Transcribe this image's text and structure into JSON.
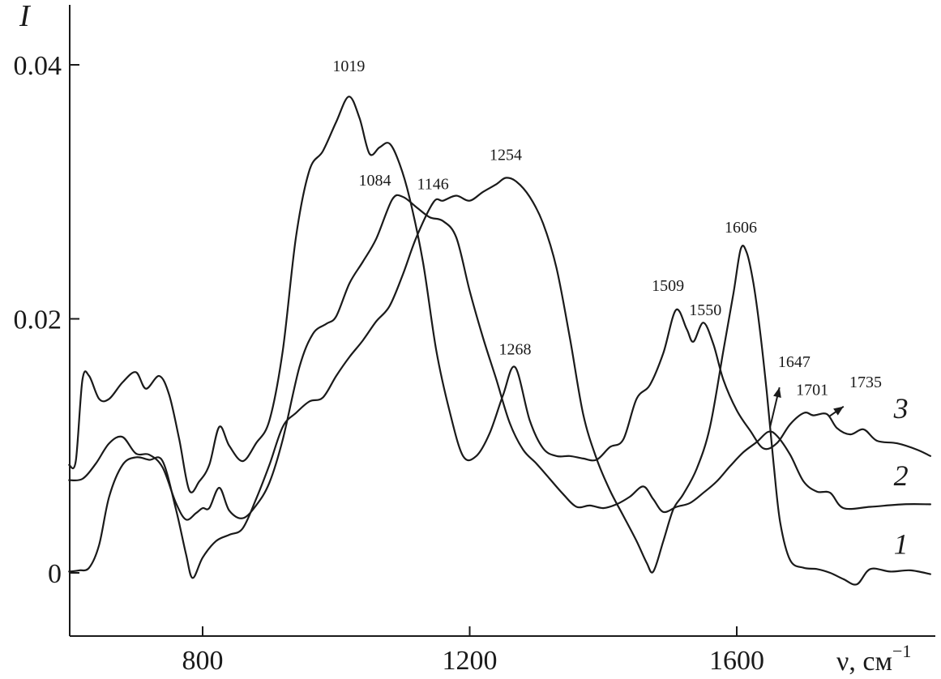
{
  "chart_data": {
    "type": "line",
    "xlabel": "ν, см",
    "xlabel_sup": "−1",
    "ylabel": "I",
    "xlim": [
      600,
      1900
    ],
    "ylim": [
      -0.0012,
      0.046
    ],
    "x_ticks": [
      800,
      1200,
      1600
    ],
    "x_tick_labels": [
      "800",
      "1200",
      "1600"
    ],
    "y_ticks": [
      0,
      0.02,
      0.04
    ],
    "y_tick_labels": [
      "0",
      "0.02",
      "0.04"
    ],
    "series": [
      {
        "name": "1",
        "points": [
          [
            600,
            0.0001
          ],
          [
            615,
            0.0002
          ],
          [
            630,
            0.0004
          ],
          [
            645,
            0.0022
          ],
          [
            660,
            0.006
          ],
          [
            680,
            0.0085
          ],
          [
            700,
            0.0091
          ],
          [
            720,
            0.0089
          ],
          [
            740,
            0.0088
          ],
          [
            760,
            0.005
          ],
          [
            775,
            0.0015
          ],
          [
            785,
            -0.0004
          ],
          [
            800,
            0.0012
          ],
          [
            820,
            0.0025
          ],
          [
            840,
            0.003
          ],
          [
            860,
            0.0035
          ],
          [
            880,
            0.0058
          ],
          [
            900,
            0.0085
          ],
          [
            920,
            0.0115
          ],
          [
            940,
            0.0126
          ],
          [
            960,
            0.0135
          ],
          [
            980,
            0.0138
          ],
          [
            1000,
            0.0155
          ],
          [
            1020,
            0.017
          ],
          [
            1040,
            0.0183
          ],
          [
            1060,
            0.0198
          ],
          [
            1080,
            0.021
          ],
          [
            1100,
            0.0235
          ],
          [
            1120,
            0.0264
          ],
          [
            1146,
            0.0292
          ],
          [
            1160,
            0.0293
          ],
          [
            1180,
            0.0297
          ],
          [
            1200,
            0.0293
          ],
          [
            1220,
            0.03
          ],
          [
            1240,
            0.0306
          ],
          [
            1254,
            0.0311
          ],
          [
            1270,
            0.0308
          ],
          [
            1290,
            0.0296
          ],
          [
            1310,
            0.0275
          ],
          [
            1330,
            0.024
          ],
          [
            1350,
            0.0185
          ],
          [
            1370,
            0.0125
          ],
          [
            1390,
            0.009
          ],
          [
            1410,
            0.0065
          ],
          [
            1430,
            0.0045
          ],
          [
            1450,
            0.0025
          ],
          [
            1465,
            0.0008
          ],
          [
            1475,
            0.0001
          ],
          [
            1490,
            0.0025
          ],
          [
            1505,
            0.005
          ],
          [
            1520,
            0.0062
          ],
          [
            1540,
            0.0082
          ],
          [
            1560,
            0.0115
          ],
          [
            1580,
            0.0175
          ],
          [
            1595,
            0.022
          ],
          [
            1606,
            0.0255
          ],
          [
            1615,
            0.0252
          ],
          [
            1625,
            0.0228
          ],
          [
            1635,
            0.019
          ],
          [
            1645,
            0.0142
          ],
          [
            1655,
            0.0087
          ],
          [
            1665,
            0.004
          ],
          [
            1680,
            0.001
          ],
          [
            1700,
            0.0004
          ],
          [
            1720,
            0.0003
          ],
          [
            1740,
            0.0
          ],
          [
            1760,
            -0.0005
          ],
          [
            1780,
            -0.0009
          ],
          [
            1800,
            0.0003
          ],
          [
            1830,
            0.0001
          ],
          [
            1860,
            0.0002
          ],
          [
            1890,
            -0.0001
          ]
        ]
      },
      {
        "name": "2",
        "points": [
          [
            600,
            0.0073
          ],
          [
            620,
            0.0074
          ],
          [
            640,
            0.0086
          ],
          [
            660,
            0.0102
          ],
          [
            680,
            0.0107
          ],
          [
            700,
            0.0094
          ],
          [
            720,
            0.0093
          ],
          [
            740,
            0.0083
          ],
          [
            760,
            0.0055
          ],
          [
            775,
            0.0042
          ],
          [
            790,
            0.0047
          ],
          [
            800,
            0.0051
          ],
          [
            810,
            0.0051
          ],
          [
            825,
            0.0067
          ],
          [
            840,
            0.0049
          ],
          [
            860,
            0.0043
          ],
          [
            880,
            0.0053
          ],
          [
            900,
            0.0071
          ],
          [
            920,
            0.0105
          ],
          [
            945,
            0.0162
          ],
          [
            965,
            0.0188
          ],
          [
            985,
            0.0196
          ],
          [
            1000,
            0.0202
          ],
          [
            1020,
            0.0228
          ],
          [
            1040,
            0.0245
          ],
          [
            1060,
            0.0263
          ],
          [
            1084,
            0.0294
          ],
          [
            1100,
            0.0296
          ],
          [
            1120,
            0.0288
          ],
          [
            1140,
            0.028
          ],
          [
            1160,
            0.0277
          ],
          [
            1180,
            0.0264
          ],
          [
            1200,
            0.0222
          ],
          [
            1220,
            0.0185
          ],
          [
            1240,
            0.0152
          ],
          [
            1260,
            0.0118
          ],
          [
            1280,
            0.0097
          ],
          [
            1300,
            0.0086
          ],
          [
            1320,
            0.0074
          ],
          [
            1340,
            0.0062
          ],
          [
            1360,
            0.0052
          ],
          [
            1380,
            0.0053
          ],
          [
            1400,
            0.0051
          ],
          [
            1420,
            0.0054
          ],
          [
            1440,
            0.006
          ],
          [
            1460,
            0.0068
          ],
          [
            1475,
            0.0058
          ],
          [
            1490,
            0.0048
          ],
          [
            1510,
            0.0052
          ],
          [
            1530,
            0.0055
          ],
          [
            1550,
            0.0063
          ],
          [
            1570,
            0.0072
          ],
          [
            1590,
            0.0084
          ],
          [
            1610,
            0.0095
          ],
          [
            1630,
            0.0103
          ],
          [
            1647,
            0.0111
          ],
          [
            1660,
            0.0108
          ],
          [
            1680,
            0.0093
          ],
          [
            1700,
            0.0072
          ],
          [
            1720,
            0.0064
          ],
          [
            1740,
            0.0063
          ],
          [
            1760,
            0.0051
          ],
          [
            1800,
            0.0052
          ],
          [
            1850,
            0.0054
          ],
          [
            1890,
            0.0054
          ]
        ]
      },
      {
        "name": "3",
        "points": [
          [
            600,
            0.0085
          ],
          [
            610,
            0.0088
          ],
          [
            620,
            0.0152
          ],
          [
            630,
            0.0155
          ],
          [
            645,
            0.0137
          ],
          [
            660,
            0.0137
          ],
          [
            680,
            0.015
          ],
          [
            700,
            0.0158
          ],
          [
            715,
            0.0145
          ],
          [
            735,
            0.0155
          ],
          [
            750,
            0.014
          ],
          [
            765,
            0.0105
          ],
          [
            780,
            0.0065
          ],
          [
            795,
            0.0072
          ],
          [
            810,
            0.0085
          ],
          [
            825,
            0.0115
          ],
          [
            840,
            0.01
          ],
          [
            860,
            0.0088
          ],
          [
            880,
            0.0102
          ],
          [
            900,
            0.012
          ],
          [
            920,
            0.0175
          ],
          [
            940,
            0.0265
          ],
          [
            960,
            0.0317
          ],
          [
            980,
            0.0332
          ],
          [
            1000,
            0.0355
          ],
          [
            1019,
            0.0375
          ],
          [
            1035,
            0.0358
          ],
          [
            1050,
            0.033
          ],
          [
            1065,
            0.0335
          ],
          [
            1080,
            0.0338
          ],
          [
            1095,
            0.0322
          ],
          [
            1110,
            0.0295
          ],
          [
            1130,
            0.0245
          ],
          [
            1150,
            0.0175
          ],
          [
            1170,
            0.0127
          ],
          [
            1190,
            0.0092
          ],
          [
            1210,
            0.0092
          ],
          [
            1230,
            0.011
          ],
          [
            1250,
            0.014
          ],
          [
            1268,
            0.0162
          ],
          [
            1290,
            0.012
          ],
          [
            1310,
            0.0098
          ],
          [
            1330,
            0.0092
          ],
          [
            1350,
            0.0092
          ],
          [
            1370,
            0.009
          ],
          [
            1390,
            0.0089
          ],
          [
            1410,
            0.0099
          ],
          [
            1430,
            0.0105
          ],
          [
            1450,
            0.0137
          ],
          [
            1470,
            0.0148
          ],
          [
            1490,
            0.0173
          ],
          [
            1509,
            0.0207
          ],
          [
            1525,
            0.0192
          ],
          [
            1535,
            0.0182
          ],
          [
            1550,
            0.0197
          ],
          [
            1565,
            0.018
          ],
          [
            1580,
            0.0152
          ],
          [
            1600,
            0.0128
          ],
          [
            1620,
            0.0112
          ],
          [
            1640,
            0.0098
          ],
          [
            1660,
            0.0102
          ],
          [
            1680,
            0.0117
          ],
          [
            1701,
            0.0126
          ],
          [
            1715,
            0.0124
          ],
          [
            1735,
            0.0125
          ],
          [
            1750,
            0.0114
          ],
          [
            1770,
            0.0109
          ],
          [
            1790,
            0.0113
          ],
          [
            1810,
            0.0104
          ],
          [
            1840,
            0.0102
          ],
          [
            1870,
            0.0097
          ],
          [
            1890,
            0.0092
          ]
        ]
      }
    ],
    "annotations": [
      {
        "text": "1019",
        "x": 1019,
        "y": 0.0395
      },
      {
        "text": "1084",
        "x": 1058,
        "y": 0.0305
      },
      {
        "text": "1146",
        "x": 1145,
        "y": 0.0302
      },
      {
        "text": "1254",
        "x": 1254,
        "y": 0.0325
      },
      {
        "text": "1268",
        "x": 1268,
        "y": 0.0172
      },
      {
        "text": "1509",
        "x": 1497,
        "y": 0.0222
      },
      {
        "text": "1550",
        "x": 1553,
        "y": 0.0203
      },
      {
        "text": "1606",
        "x": 1606,
        "y": 0.0268
      },
      {
        "text": "1647",
        "x": 1686,
        "y": 0.0162
      },
      {
        "text": "1701",
        "x": 1713,
        "y": 0.014
      },
      {
        "text": "1735",
        "x": 1793,
        "y": 0.0146
      }
    ],
    "arrows": [
      {
        "from": [
          1650,
          0.0115
        ],
        "to": [
          1664,
          0.0146
        ]
      },
      {
        "from": [
          1738,
          0.0123
        ],
        "to": [
          1760,
          0.0131
        ]
      }
    ],
    "series_labels": [
      {
        "text": "3",
        "x": 1835,
        "y": 0.0122
      },
      {
        "text": "2",
        "x": 1835,
        "y": 0.0069
      },
      {
        "text": "1",
        "x": 1835,
        "y": 0.0015
      }
    ]
  }
}
